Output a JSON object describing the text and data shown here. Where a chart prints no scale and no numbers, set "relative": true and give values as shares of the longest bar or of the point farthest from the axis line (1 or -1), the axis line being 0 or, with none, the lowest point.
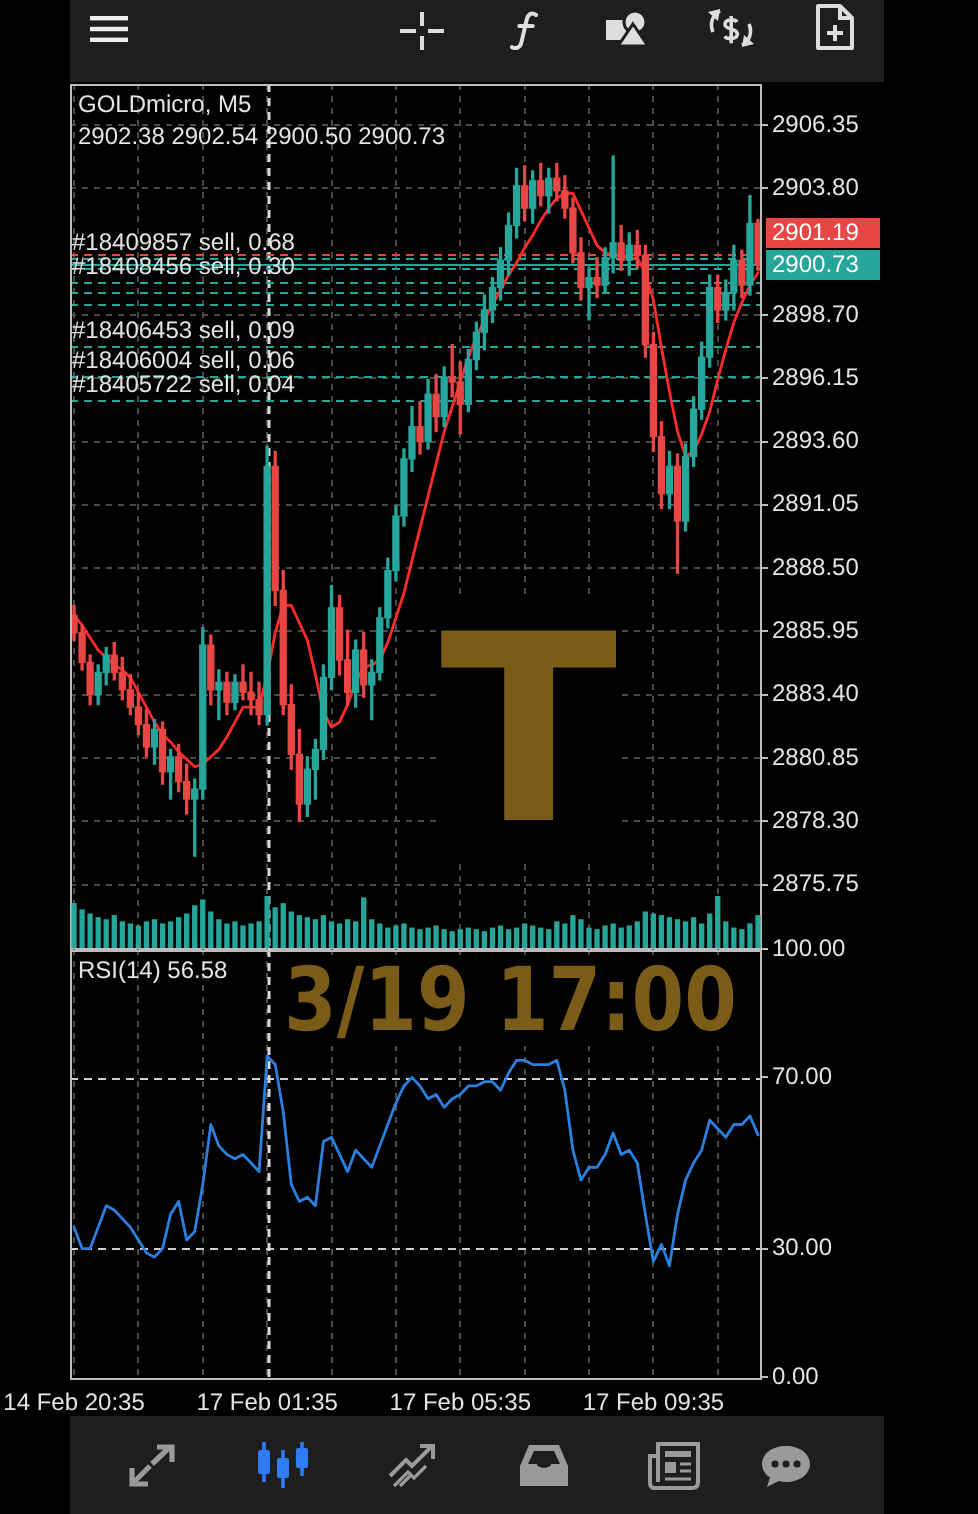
{
  "chart_data": [
    {
      "type": "candlestick",
      "title": "GOLDmicro, M5",
      "subtitle": "2902.38 2902.54 2900.50 2900.73",
      "categories": [
        "14 Feb 20:35",
        null,
        null,
        null,
        null,
        null,
        null,
        null,
        null,
        null,
        null,
        null,
        null,
        null,
        null,
        null,
        null,
        null,
        null,
        null,
        null,
        null,
        null,
        null,
        "17 Feb 01:35",
        null,
        null,
        null,
        null,
        null,
        null,
        null,
        null,
        null,
        null,
        null,
        null,
        null,
        null,
        null,
        null,
        null,
        null,
        null,
        null,
        null,
        null,
        null,
        "17 Feb 05:35",
        null,
        null,
        null,
        null,
        null,
        null,
        null,
        null,
        null,
        null,
        null,
        null,
        null,
        null,
        null,
        null,
        null,
        null,
        null,
        null,
        null,
        null,
        null,
        "17 Feb 09:35",
        null,
        null,
        null,
        null,
        null,
        null,
        null,
        null,
        null,
        null,
        null,
        null,
        null
      ],
      "ohlc": [
        [
          2886.6,
          2887.0,
          2885.6,
          2885.9
        ],
        [
          2885.9,
          2886.2,
          2884.4,
          2884.7
        ],
        [
          2884.7,
          2885.0,
          2883.0,
          2883.4
        ],
        [
          2883.4,
          2884.6,
          2883.0,
          2884.3
        ],
        [
          2884.3,
          2885.3,
          2883.8,
          2885.0
        ],
        [
          2885.0,
          2885.5,
          2884.0,
          2884.3
        ],
        [
          2884.3,
          2884.9,
          2883.2,
          2883.6
        ],
        [
          2883.6,
          2884.2,
          2882.6,
          2882.9
        ],
        [
          2882.9,
          2883.5,
          2881.8,
          2882.2
        ],
        [
          2882.2,
          2882.8,
          2880.9,
          2881.3
        ],
        [
          2881.3,
          2882.4,
          2880.6,
          2882.0
        ],
        [
          2882.0,
          2882.3,
          2879.8,
          2880.3
        ],
        [
          2880.3,
          2881.2,
          2879.2,
          2880.9
        ],
        [
          2880.9,
          2881.4,
          2879.5,
          2879.9
        ],
        [
          2879.9,
          2880.6,
          2878.6,
          2879.2
        ],
        [
          2879.2,
          2880.0,
          2876.9,
          2879.6
        ],
        [
          2879.6,
          2886.1,
          2879.2,
          2885.4
        ],
        [
          2885.4,
          2885.8,
          2883.0,
          2883.6
        ],
        [
          2883.6,
          2884.4,
          2882.4,
          2883.9
        ],
        [
          2883.9,
          2884.3,
          2882.6,
          2883.1
        ],
        [
          2883.1,
          2884.2,
          2882.8,
          2883.9
        ],
        [
          2883.9,
          2884.6,
          2883.2,
          2883.5
        ],
        [
          2883.5,
          2884.3,
          2882.6,
          2883.2
        ],
        [
          2883.2,
          2883.9,
          2882.2,
          2882.6
        ],
        [
          2882.6,
          2893.4,
          2882.2,
          2892.6
        ],
        [
          2892.6,
          2893.2,
          2887.0,
          2887.6
        ],
        [
          2887.6,
          2888.4,
          2882.6,
          2883.0
        ],
        [
          2883.0,
          2883.8,
          2880.4,
          2881.0
        ],
        [
          2881.0,
          2882.0,
          2878.3,
          2879.0
        ],
        [
          2879.0,
          2880.9,
          2878.5,
          2880.4
        ],
        [
          2880.4,
          2881.6,
          2879.2,
          2881.2
        ],
        [
          2881.2,
          2884.6,
          2880.8,
          2884.1
        ],
        [
          2884.1,
          2887.8,
          2883.6,
          2886.9
        ],
        [
          2886.9,
          2887.4,
          2884.2,
          2884.8
        ],
        [
          2884.8,
          2886.0,
          2883.0,
          2883.5
        ],
        [
          2883.5,
          2885.6,
          2882.9,
          2885.2
        ],
        [
          2885.2,
          2885.9,
          2883.3,
          2883.8
        ],
        [
          2883.8,
          2884.8,
          2882.4,
          2884.3
        ],
        [
          2884.3,
          2886.9,
          2884.0,
          2886.5
        ],
        [
          2886.5,
          2888.9,
          2886.1,
          2888.4
        ],
        [
          2888.4,
          2891.0,
          2888.0,
          2890.6
        ],
        [
          2890.6,
          2893.3,
          2890.2,
          2892.9
        ],
        [
          2892.9,
          2895.0,
          2892.4,
          2894.2
        ],
        [
          2894.2,
          2895.2,
          2893.1,
          2893.6
        ],
        [
          2893.6,
          2896.1,
          2893.3,
          2895.5
        ],
        [
          2895.5,
          2896.3,
          2894.0,
          2894.6
        ],
        [
          2894.6,
          2896.6,
          2894.2,
          2896.2
        ],
        [
          2896.2,
          2897.5,
          2895.4,
          2896.0
        ],
        [
          2896.0,
          2896.8,
          2893.9,
          2895.1
        ],
        [
          2895.1,
          2897.3,
          2894.8,
          2896.9
        ],
        [
          2896.9,
          2898.4,
          2896.5,
          2898.0
        ],
        [
          2898.0,
          2899.5,
          2897.3,
          2898.9
        ],
        [
          2898.9,
          2900.2,
          2898.4,
          2899.8
        ],
        [
          2899.8,
          2901.4,
          2899.3,
          2900.9
        ],
        [
          2900.9,
          2902.8,
          2900.3,
          2902.3
        ],
        [
          2902.3,
          2904.6,
          2901.8,
          2903.9
        ],
        [
          2903.9,
          2904.7,
          2902.5,
          2903.0
        ],
        [
          2903.0,
          2904.5,
          2902.4,
          2904.1
        ],
        [
          2904.1,
          2904.8,
          2903.1,
          2903.5
        ],
        [
          2903.5,
          2904.6,
          2902.8,
          2904.2
        ],
        [
          2904.2,
          2904.8,
          2903.3,
          2903.7
        ],
        [
          2903.7,
          2904.3,
          2902.6,
          2903.0
        ],
        [
          2903.0,
          2903.4,
          2900.8,
          2901.2
        ],
        [
          2901.2,
          2901.8,
          2899.3,
          2899.8
        ],
        [
          2899.8,
          2900.6,
          2898.5,
          2900.2
        ],
        [
          2900.2,
          2901.0,
          2899.4,
          2899.9
        ],
        [
          2899.9,
          2901.4,
          2899.6,
          2901.0
        ],
        [
          2901.0,
          2905.1,
          2900.4,
          2901.6
        ],
        [
          2901.6,
          2902.3,
          2900.5,
          2900.9
        ],
        [
          2900.9,
          2902.0,
          2900.3,
          2901.5
        ],
        [
          2901.5,
          2902.1,
          2900.6,
          2901.1
        ],
        [
          2901.1,
          2901.5,
          2897.0,
          2897.5
        ],
        [
          2897.5,
          2898.0,
          2893.2,
          2893.8
        ],
        [
          2893.8,
          2894.4,
          2890.9,
          2891.5
        ],
        [
          2891.5,
          2893.2,
          2890.9,
          2892.6
        ],
        [
          2892.6,
          2893.1,
          2888.3,
          2890.4
        ],
        [
          2890.4,
          2893.5,
          2890.0,
          2893.0
        ],
        [
          2893.0,
          2895.4,
          2892.6,
          2894.9
        ],
        [
          2894.9,
          2897.6,
          2894.5,
          2897.0
        ],
        [
          2897.0,
          2900.3,
          2896.6,
          2899.8
        ],
        [
          2899.8,
          2900.3,
          2898.4,
          2898.9
        ],
        [
          2898.9,
          2900.1,
          2898.5,
          2899.6
        ],
        [
          2899.6,
          2901.5,
          2898.9,
          2900.9
        ],
        [
          2900.9,
          2901.3,
          2899.4,
          2899.9
        ],
        [
          2899.9,
          2903.5,
          2899.5,
          2902.38
        ],
        [
          2902.38,
          2902.54,
          2900.5,
          2900.73
        ]
      ],
      "colors": [
        "#e84545",
        "#e84545",
        "#e84545",
        "#26a69a",
        "#26a69a",
        "#e84545",
        "#e84545",
        "#e84545",
        "#e84545",
        "#e84545",
        "#26a69a",
        "#e84545",
        "#26a69a",
        "#e84545",
        "#e84545",
        "#26a69a",
        "#26a69a",
        "#e84545",
        "#26a69a",
        "#e84545",
        "#26a69a",
        "#e84545",
        "#e84545",
        "#e84545",
        "#26a69a",
        "#e84545",
        "#e84545",
        "#e84545",
        "#e84545",
        "#26a69a",
        "#26a69a",
        "#26a69a",
        "#26a69a",
        "#e84545",
        "#e84545",
        "#26a69a",
        "#e84545",
        "#26a69a",
        "#26a69a",
        "#26a69a",
        "#26a69a",
        "#26a69a",
        "#26a69a",
        "#e84545",
        "#26a69a",
        "#e84545",
        "#26a69a",
        "#e84545",
        "#e84545",
        "#26a69a",
        "#26a69a",
        "#26a69a",
        "#26a69a",
        "#26a69a",
        "#26a69a",
        "#26a69a",
        "#e84545",
        "#26a69a",
        "#e84545",
        "#26a69a",
        "#e84545",
        "#e84545",
        "#e84545",
        "#e84545",
        "#26a69a",
        "#e84545",
        "#26a69a",
        "#26a69a",
        "#e84545",
        "#26a69a",
        "#e84545",
        "#e84545",
        "#e84545",
        "#e84545",
        "#26a69a",
        "#e84545",
        "#26a69a",
        "#26a69a",
        "#26a69a",
        "#26a69a",
        "#e84545",
        "#26a69a",
        "#26a69a",
        "#e84545",
        "#26a69a",
        "#e84545"
      ],
      "series": [
        {
          "type": "line",
          "color": "#ff2b2b",
          "values": [
            2886.6,
            2886.2,
            2885.7,
            2885.2,
            2884.9,
            2884.6,
            2884.4,
            2884.1,
            2883.5,
            2882.9,
            2882.3,
            2881.8,
            2881.5,
            2881.1,
            2880.8,
            2880.5,
            2880.6,
            2880.9,
            2881.2,
            2881.7,
            2882.3,
            2882.9,
            2882.9,
            2882.9,
            2884.2,
            2885.9,
            2887.0,
            2887.0,
            2886.3,
            2885.6,
            2884.2,
            2882.7,
            2882.1,
            2882.3,
            2883.0,
            2883.9,
            2884.5,
            2884.6,
            2884.8,
            2885.5,
            2886.5,
            2887.5,
            2888.8,
            2890.1,
            2891.4,
            2892.7,
            2894.0,
            2895.0,
            2896.0,
            2897.0,
            2897.8,
            2898.5,
            2899.1,
            2899.7,
            2900.3,
            2900.8,
            2901.4,
            2901.9,
            2902.5,
            2903.0,
            2903.4,
            2903.6,
            2903.6,
            2902.9,
            2902.2,
            2901.5,
            2901.2,
            2901.1,
            2901.1,
            2901.0,
            2901.0,
            2900.4,
            2899.3,
            2897.4,
            2895.6,
            2894.0,
            2893.0,
            2893.2,
            2893.9,
            2894.8,
            2896.1,
            2897.3,
            2898.4,
            2899.2,
            2899.9,
            2900.4
          ]
        }
      ],
      "ylim": [
        2873.2,
        2908.0
      ],
      "yticks": [
        2875.75,
        {
          "value": 2878.3,
          "label": "2878.30"
        },
        2880.85,
        {
          "value": 2883.4,
          "label": "2883.40"
        },
        2885.95,
        {
          "value": 2888.5,
          "label": "2888.50"
        },
        2891.05,
        {
          "value": 2893.6,
          "label": "2893.60"
        },
        2896.15,
        {
          "value": 2898.7,
          "label": "2898.70"
        },
        {
          "value": 2903.8,
          "label": "2903.80"
        },
        2906.35
      ],
      "grid": true,
      "tick_labels": "y",
      "ref_lines": [
        {
          "axis": "x",
          "value": "17 Feb 01:35",
          "color": "#d9d9d9",
          "line_style": "dashed"
        },
        {
          "axis": "y",
          "value": 2901.19,
          "label": "2901.19",
          "color": "#e84545",
          "line_style": "dashed"
        },
        {
          "axis": "y",
          "value": 2900.73,
          "label": "2900.73",
          "color": "#26a69a",
          "line_style": "solid"
        },
        {
          "axis": "y",
          "value": 2901.02,
          "color": "#26a69a",
          "line_style": "dashed"
        },
        {
          "axis": "y",
          "value": 2900.62,
          "color": "#26a69a",
          "line_style": "dashed"
        },
        {
          "axis": "y",
          "value": 2900.04,
          "color": "#26a69a",
          "line_style": "dashed"
        },
        {
          "axis": "y",
          "value": 2899.66,
          "color": "#26a69a",
          "line_style": "dashed"
        },
        {
          "axis": "y",
          "value": 2899.17,
          "color": "#26a69a",
          "line_style": "dashed"
        },
        {
          "axis": "y",
          "value": 2897.45,
          "color": "#26a69a",
          "line_style": "dashed"
        },
        {
          "axis": "y",
          "value": 2896.27,
          "color": "#26a69a",
          "line_style": "dashed"
        },
        {
          "axis": "y",
          "value": 2895.3,
          "color": "#26a69a",
          "line_style": "dashed"
        }
      ],
      "annotations": [
        {
          "text": "#18409857 sell, 0.68",
          "y": 2901.02
        },
        {
          "text": "#18408456 sell, 0.30",
          "y": 2900.04
        },
        {
          "text": "#18406453 sell, 0.09",
          "y": 2897.45
        },
        {
          "text": "#18406004 sell, 0.06",
          "y": 2896.27
        },
        {
          "text": "#18405722 sell, 0.04",
          "y": 2895.3
        },
        "T",
        "3/19 17:00"
      ]
    },
    {
      "type": "bar",
      "relative": true,
      "tick_labels": false,
      "color": "#26a69a",
      "categories": [
        "14 Feb 20:35",
        null,
        null,
        null,
        null,
        null,
        null,
        null,
        null,
        null,
        null,
        null,
        null,
        null,
        null,
        null,
        null,
        null,
        null,
        null,
        null,
        null,
        null,
        null,
        "17 Feb 01:35",
        null,
        null,
        null,
        null,
        null,
        null,
        null,
        null,
        null,
        null,
        null,
        null,
        null,
        null,
        null,
        null,
        null,
        null,
        null,
        null,
        null,
        null,
        null,
        "17 Feb 05:35",
        null,
        null,
        null,
        null,
        null,
        null,
        null,
        null,
        null,
        null,
        null,
        null,
        null,
        null,
        null,
        null,
        null,
        null,
        null,
        null,
        null,
        null,
        null,
        "17 Feb 09:35",
        null,
        null,
        null,
        null,
        null,
        null,
        null,
        null,
        null,
        null,
        null,
        null,
        null
      ],
      "values": [
        0.85,
        0.73,
        0.65,
        0.58,
        0.54,
        0.62,
        0.5,
        0.46,
        0.42,
        0.5,
        0.54,
        0.46,
        0.5,
        0.58,
        0.65,
        0.81,
        0.92,
        0.69,
        0.54,
        0.46,
        0.5,
        0.42,
        0.46,
        0.5,
        1,
        0.77,
        0.85,
        0.69,
        0.62,
        0.58,
        0.54,
        0.62,
        0.5,
        0.46,
        0.54,
        0.5,
        0.96,
        0.54,
        0.46,
        0.38,
        0.42,
        0.46,
        0.38,
        0.35,
        0.38,
        0.42,
        0.35,
        0.31,
        0.35,
        0.38,
        0.35,
        0.31,
        0.38,
        0.42,
        0.35,
        0.38,
        0.46,
        0.42,
        0.38,
        0.35,
        0.5,
        0.46,
        0.62,
        0.54,
        0.38,
        0.35,
        0.42,
        0.46,
        0.38,
        0.42,
        0.5,
        0.69,
        0.65,
        0.62,
        0.58,
        0.54,
        0.5,
        0.58,
        0.46,
        0.65,
        1,
        0.5,
        0.38,
        0.35,
        0.46,
        0.62
      ]
    },
    {
      "type": "line",
      "title": "RSI(14) 56.58",
      "color": "#2b7fde",
      "categories": [
        "14 Feb 20:35",
        null,
        null,
        null,
        null,
        null,
        null,
        null,
        null,
        null,
        null,
        null,
        null,
        null,
        null,
        null,
        null,
        null,
        null,
        null,
        null,
        null,
        null,
        null,
        "17 Feb 01:35",
        null,
        null,
        null,
        null,
        null,
        null,
        null,
        null,
        null,
        null,
        null,
        null,
        null,
        null,
        null,
        null,
        null,
        null,
        null,
        null,
        null,
        null,
        null,
        "17 Feb 05:35",
        null,
        null,
        null,
        null,
        null,
        null,
        null,
        null,
        null,
        null,
        null,
        null,
        null,
        null,
        null,
        null,
        null,
        null,
        null,
        null,
        null,
        null,
        null,
        "17 Feb 09:35",
        null,
        null,
        null,
        null,
        null,
        null,
        null,
        null,
        null,
        null,
        null,
        null,
        null
      ],
      "values": [
        35,
        30,
        30,
        35,
        40,
        39,
        37,
        35,
        32,
        29,
        28,
        30,
        38,
        41,
        32,
        34,
        45,
        59,
        54,
        52,
        51,
        52,
        50,
        48,
        75,
        73,
        62,
        45,
        41,
        42,
        40,
        55,
        56,
        52,
        48,
        53,
        51,
        49,
        54,
        59,
        64,
        68,
        70,
        68,
        65,
        66,
        63,
        65,
        66,
        68,
        68,
        69,
        69,
        67,
        71,
        74,
        74,
        73,
        73,
        73,
        74,
        67,
        53,
        46,
        49,
        49,
        52,
        57,
        52,
        53,
        50,
        38,
        27,
        31,
        26,
        38,
        46,
        50,
        53,
        60,
        58,
        56,
        59,
        59,
        61,
        56.58
      ],
      "ylim": [
        0,
        100
      ],
      "yticks": [
        {
          "value": 0,
          "label": "0.00"
        },
        {
          "value": 30,
          "label": "30.00"
        },
        {
          "value": 70,
          "label": "70.00"
        },
        {
          "value": 100,
          "label": "100.00"
        }
      ],
      "grid": "x",
      "ref_lines": [
        {
          "axis": "y",
          "value": 70,
          "color": "#cfcfcf",
          "line_style": "dashed"
        },
        {
          "axis": "y",
          "value": 30,
          "color": "#cfcfcf",
          "line_style": "dashed"
        },
        {
          "axis": "x",
          "value": "17 Feb 01:35",
          "color": "#d9d9d9",
          "line_style": "dashed"
        }
      ]
    }
  ]
}
